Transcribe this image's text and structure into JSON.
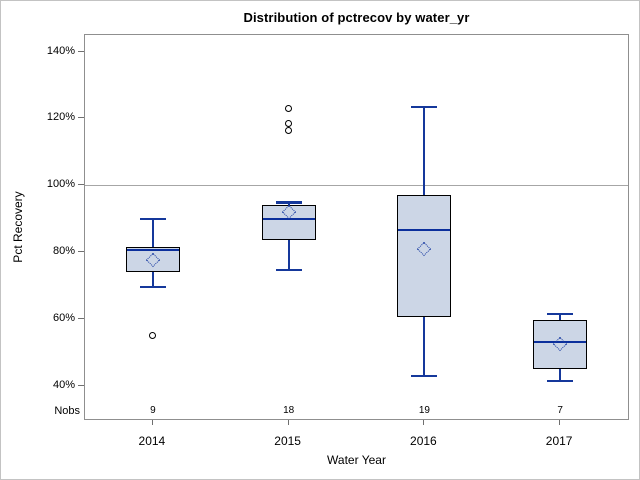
{
  "chart_data": {
    "type": "boxplot",
    "title": "Distribution of pctrecov by water_yr",
    "xlabel": "Water Year",
    "ylabel": "Pct Recovery",
    "nobs_label": "Nobs",
    "categories": [
      "2014",
      "2015",
      "2016",
      "2017"
    ],
    "ylim": [
      30,
      145
    ],
    "reference_line": 100,
    "grid": "off",
    "legend": "none",
    "y_ticks": [
      {
        "value": 40,
        "label": "40%"
      },
      {
        "value": 60,
        "label": "60%"
      },
      {
        "value": 80,
        "label": "80%"
      },
      {
        "value": 100,
        "label": "100%"
      },
      {
        "value": 120,
        "label": "120%"
      },
      {
        "value": 140,
        "label": "140%"
      }
    ],
    "series": [
      {
        "category": "2014",
        "n": 9,
        "whisker_low": 69.5,
        "q1": 74,
        "median": 80.5,
        "q3": 81.5,
        "whisker_high": 90,
        "mean": 77.5,
        "outliers": [
          55
        ]
      },
      {
        "category": "2015",
        "n": 18,
        "whisker_low": 74.5,
        "q1": 83.5,
        "median": 90,
        "q3": 94,
        "whisker_high": 95,
        "mean": 92,
        "outliers": [
          123,
          118.5,
          116.5
        ]
      },
      {
        "category": "2016",
        "n": 19,
        "whisker_low": 43,
        "q1": 60.5,
        "median": 86.5,
        "q3": 97,
        "whisker_high": 123.5,
        "mean": 81,
        "outliers": []
      },
      {
        "category": "2017",
        "n": 7,
        "whisker_low": 41.5,
        "q1": 45,
        "median": 53,
        "q3": 59.5,
        "whisker_high": 61.5,
        "mean": 52.5,
        "outliers": []
      }
    ],
    "colors": {
      "box_fill": "#ccd6e6",
      "box_border": "#000000",
      "whisker": "#15389b",
      "median": "#0b2f9c",
      "mean_marker": "#1d3fa3",
      "outlier": "#000000",
      "reference_line": "#a6a6a6",
      "plot_border": "#8f8f8f",
      "tick": "#6f6f6f",
      "figure_border": "#c3c3c3",
      "text": "#000000"
    }
  }
}
